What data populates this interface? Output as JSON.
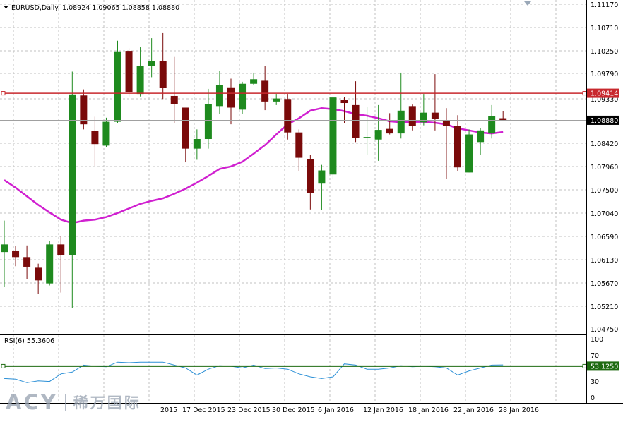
{
  "header": {
    "symbol_label": "EURUSD,Daily",
    "ohlc_text": "1.08924 1.09065 1.08858 1.08880"
  },
  "price_axis": {
    "labels": [
      "1.11170",
      "1.10710",
      "1.10250",
      "1.09790",
      "1.09330",
      "1.08420",
      "1.07960",
      "1.07500",
      "1.07040",
      "1.06590",
      "1.06130",
      "1.05670",
      "1.05210",
      "1.04750"
    ]
  },
  "markers": {
    "resistance_label": "1.09414",
    "current_price_label": "1.08880"
  },
  "rsi": {
    "title": "RSI(6) 55.3606",
    "axis_labels": [
      "100",
      "70",
      "30",
      "0"
    ],
    "level_label": "53.1250"
  },
  "time_axis": {
    "labels": [
      "2015",
      "17 Dec 2015",
      "23 Dec 2015",
      "30 Dec 2015",
      "6 Jan 2016",
      "12 Jan 2016",
      "18 Jan 2016",
      "22 Jan 2016",
      "28 Jan 2016"
    ]
  },
  "watermark": {
    "logo_text": "ACY",
    "chinese_text": "稀万国际"
  },
  "colors": {
    "bull": "#1e8a1e",
    "bear": "#7a0a0a",
    "ma": "#d020d0",
    "resistance": "#c8282d",
    "rsi_line": "#2a8fd6",
    "rsi_level": "#1f6b12",
    "grid": "#c0c0c0"
  },
  "chart_data": {
    "type": "candlestick",
    "symbol": "EURUSD",
    "timeframe": "Daily",
    "price_range": [
      1.0452,
      1.1125
    ],
    "resistance_level": 1.09414,
    "current_price": 1.0888,
    "candles": [
      {
        "o": 1.0628,
        "h": 1.069,
        "l": 1.056,
        "c": 1.0643
      },
      {
        "o": 1.0631,
        "h": 1.064,
        "l": 1.06,
        "c": 1.0618
      },
      {
        "o": 1.0618,
        "h": 1.0641,
        "l": 1.0574,
        "c": 1.0599
      },
      {
        "o": 1.0597,
        "h": 1.0605,
        "l": 1.0545,
        "c": 1.0572
      },
      {
        "o": 1.0566,
        "h": 1.065,
        "l": 1.0562,
        "c": 1.0643
      },
      {
        "o": 1.0643,
        "h": 1.066,
        "l": 1.0548,
        "c": 1.0622
      },
      {
        "o": 1.0622,
        "h": 1.0984,
        "l": 1.0517,
        "c": 1.0939
      },
      {
        "o": 1.0937,
        "h": 1.0949,
        "l": 1.087,
        "c": 1.088
      },
      {
        "o": 1.0867,
        "h": 1.0895,
        "l": 1.0798,
        "c": 1.0841
      },
      {
        "o": 1.0838,
        "h": 1.0893,
        "l": 1.0835,
        "c": 1.0885
      },
      {
        "o": 1.0885,
        "h": 1.1045,
        "l": 1.0883,
        "c": 1.1024
      },
      {
        "o": 1.1025,
        "h": 1.103,
        "l": 1.0935,
        "c": 1.0943
      },
      {
        "o": 1.094,
        "h": 1.1032,
        "l": 1.0935,
        "c": 1.0995
      },
      {
        "o": 1.0995,
        "h": 1.105,
        "l": 1.0973,
        "c": 1.1005
      },
      {
        "o": 1.1005,
        "h": 1.106,
        "l": 1.093,
        "c": 1.0952
      },
      {
        "o": 1.0936,
        "h": 1.1013,
        "l": 1.0883,
        "c": 1.092
      },
      {
        "o": 1.0913,
        "h": 1.0913,
        "l": 1.0805,
        "c": 1.0832
      },
      {
        "o": 1.0832,
        "h": 1.087,
        "l": 1.081,
        "c": 1.0851
      },
      {
        "o": 1.0851,
        "h": 1.095,
        "l": 1.0832,
        "c": 1.092
      },
      {
        "o": 1.0916,
        "h": 1.0985,
        "l": 1.09,
        "c": 1.0958
      },
      {
        "o": 1.0953,
        "h": 1.097,
        "l": 1.088,
        "c": 1.0913
      },
      {
        "o": 1.0909,
        "h": 1.0964,
        "l": 1.09,
        "c": 1.096
      },
      {
        "o": 1.096,
        "h": 1.0982,
        "l": 1.0958,
        "c": 1.0969
      },
      {
        "o": 1.0966,
        "h": 1.0995,
        "l": 1.0908,
        "c": 1.0925
      },
      {
        "o": 1.0925,
        "h": 1.094,
        "l": 1.0918,
        "c": 1.0931
      },
      {
        "o": 1.093,
        "h": 1.094,
        "l": 1.085,
        "c": 1.0864
      },
      {
        "o": 1.0864,
        "h": 1.087,
        "l": 1.0788,
        "c": 1.0814
      },
      {
        "o": 1.0812,
        "h": 1.082,
        "l": 1.0712,
        "c": 1.0745
      },
      {
        "o": 1.0763,
        "h": 1.08,
        "l": 1.0711,
        "c": 1.0789
      },
      {
        "o": 1.0781,
        "h": 1.0935,
        "l": 1.0773,
        "c": 1.0933
      },
      {
        "o": 1.0929,
        "h": 1.0934,
        "l": 1.0883,
        "c": 1.0922
      },
      {
        "o": 1.0918,
        "h": 1.0965,
        "l": 1.0845,
        "c": 1.0853
      },
      {
        "o": 1.0853,
        "h": 1.0915,
        "l": 1.082,
        "c": 1.0855
      },
      {
        "o": 1.085,
        "h": 1.0918,
        "l": 1.0808,
        "c": 1.0869
      },
      {
        "o": 1.0871,
        "h": 1.0902,
        "l": 1.086,
        "c": 1.0862
      },
      {
        "o": 1.0862,
        "h": 1.0982,
        "l": 1.0852,
        "c": 1.0907
      },
      {
        "o": 1.0916,
        "h": 1.0919,
        "l": 1.0868,
        "c": 1.0877
      },
      {
        "o": 1.0884,
        "h": 1.094,
        "l": 1.0878,
        "c": 1.0903
      },
      {
        "o": 1.0903,
        "h": 1.0979,
        "l": 1.0868,
        "c": 1.0891
      },
      {
        "o": 1.0888,
        "h": 1.0912,
        "l": 1.0773,
        "c": 1.0877
      },
      {
        "o": 1.0877,
        "h": 1.0898,
        "l": 1.0787,
        "c": 1.0795
      },
      {
        "o": 1.0785,
        "h": 1.087,
        "l": 1.0785,
        "c": 1.086
      },
      {
        "o": 1.0845,
        "h": 1.0872,
        "l": 1.082,
        "c": 1.0868
      },
      {
        "o": 1.0862,
        "h": 1.0918,
        "l": 1.0852,
        "c": 1.0896
      },
      {
        "o": 1.0892,
        "h": 1.0906,
        "l": 1.0886,
        "c": 1.0888
      }
    ],
    "moving_average": [
      1.077,
      1.0755,
      1.0738,
      1.0721,
      1.0706,
      1.0692,
      1.0685,
      1.069,
      1.0692,
      1.0697,
      1.0705,
      1.0714,
      1.0723,
      1.0729,
      1.0734,
      1.0743,
      1.0753,
      1.0765,
      1.0778,
      1.0792,
      1.0797,
      1.0806,
      1.0822,
      1.0839,
      1.086,
      1.088,
      1.0892,
      1.0907,
      1.0912,
      1.091,
      1.0906,
      1.09,
      1.0897,
      1.0892,
      1.0886,
      1.0884,
      1.0885,
      1.0885,
      1.0883,
      1.088,
      1.0872,
      1.0868,
      1.0864,
      1.0862,
      1.0865
    ],
    "rsi_values": [
      32,
      31,
      25,
      28,
      27,
      40,
      43,
      55,
      53,
      52,
      60,
      59,
      60,
      60,
      60,
      55,
      50,
      38,
      48,
      54,
      53,
      50,
      55,
      49,
      50,
      48,
      40,
      35,
      32,
      35,
      57,
      55,
      48,
      48,
      50,
      54,
      52,
      53,
      52,
      50,
      38,
      45,
      50,
      55,
      55.36
    ],
    "rsi_level": 53.125,
    "rsi_range": [
      0,
      100
    ]
  }
}
